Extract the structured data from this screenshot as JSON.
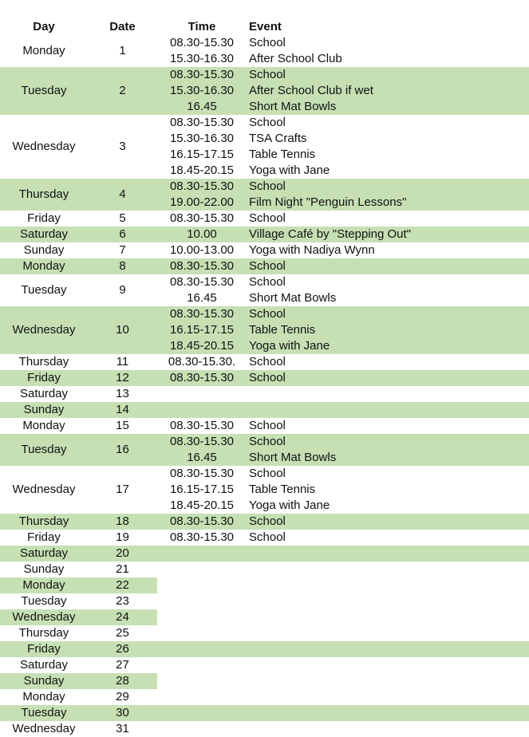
{
  "header": {
    "day": "Day",
    "date": "Date",
    "time": "Time",
    "event": "Event"
  },
  "colors": {
    "band": "#c6e0b4"
  },
  "days": [
    {
      "day": "Monday",
      "date": "1",
      "shade": "none",
      "events": [
        {
          "time": "08.30-15.30",
          "event": "School"
        },
        {
          "time": "15.30-16.30",
          "event": "After School Club"
        }
      ]
    },
    {
      "day": "Tuesday",
      "date": "2",
      "shade": "full",
      "events": [
        {
          "time": "08.30-15.30",
          "event": "School"
        },
        {
          "time": "15.30-16.30",
          "event": "After School Club if wet"
        },
        {
          "time": "16.45",
          "event": "Short Mat Bowls"
        }
      ]
    },
    {
      "day": "Wednesday",
      "date": "3",
      "shade": "none",
      "events": [
        {
          "time": "08.30-15.30",
          "event": "School"
        },
        {
          "time": "15.30-16.30",
          "event": "TSA Crafts"
        },
        {
          "time": "16.15-17.15",
          "event": "Table Tennis"
        },
        {
          "time": "18.45-20.15",
          "event": "Yoga with Jane"
        }
      ]
    },
    {
      "day": "Thursday",
      "date": "4",
      "shade": "full",
      "events": [
        {
          "time": "08.30-15.30",
          "event": "School"
        },
        {
          "time": "19.00-22.00",
          "event": "Film Night \"Penguin Lessons\""
        }
      ]
    },
    {
      "day": "Friday",
      "date": "5",
      "shade": "none",
      "events": [
        {
          "time": "08.30-15.30",
          "event": "School"
        }
      ]
    },
    {
      "day": "Saturday",
      "date": "6",
      "shade": "full",
      "events": [
        {
          "time": "10.00",
          "event": "Village Café by \"Stepping Out\""
        }
      ]
    },
    {
      "day": "Sunday",
      "date": "7",
      "shade": "none",
      "events": [
        {
          "time": "10.00-13.00",
          "event": "Yoga with Nadiya Wynn"
        }
      ]
    },
    {
      "day": "Monday",
      "date": "8",
      "shade": "full",
      "events": [
        {
          "time": "08.30-15.30",
          "event": "School"
        }
      ]
    },
    {
      "day": "Tuesday",
      "date": "9",
      "shade": "none",
      "events": [
        {
          "time": "08.30-15.30",
          "event": "School"
        },
        {
          "time": "16.45",
          "event": "Short Mat Bowls"
        }
      ]
    },
    {
      "day": "Wednesday",
      "date": "10",
      "shade": "full",
      "events": [
        {
          "time": "08.30-15.30",
          "event": "School"
        },
        {
          "time": "16.15-17.15",
          "event": "Table Tennis"
        },
        {
          "time": "18.45-20.15",
          "event": "Yoga with Jane"
        }
      ]
    },
    {
      "day": "Thursday",
      "date": "11",
      "shade": "none",
      "events": [
        {
          "time": "08.30-15.30.",
          "event": "School"
        }
      ]
    },
    {
      "day": "Friday",
      "date": "12",
      "shade": "full",
      "events": [
        {
          "time": "08.30-15.30",
          "event": "School"
        }
      ]
    },
    {
      "day": "Saturday",
      "date": "13",
      "shade": "none",
      "events": []
    },
    {
      "day": "Sunday",
      "date": "14",
      "shade": "full",
      "events": []
    },
    {
      "day": "Monday",
      "date": "15",
      "shade": "none",
      "events": [
        {
          "time": "08.30-15.30",
          "event": "School"
        }
      ]
    },
    {
      "day": "Tuesday",
      "date": "16",
      "shade": "full",
      "events": [
        {
          "time": "08.30-15.30",
          "event": "School"
        },
        {
          "time": "16.45",
          "event": "Short Mat Bowls"
        }
      ]
    },
    {
      "day": "Wednesday",
      "date": "17",
      "shade": "none",
      "events": [
        {
          "time": "08.30-15.30",
          "event": "School"
        },
        {
          "time": "16.15-17.15",
          "event": "Table Tennis"
        },
        {
          "time": "18.45-20.15",
          "event": "Yoga with Jane"
        }
      ]
    },
    {
      "day": "Thursday",
      "date": "18",
      "shade": "full",
      "events": [
        {
          "time": "08.30-15.30",
          "event": "School"
        }
      ]
    },
    {
      "day": "Friday",
      "date": "19",
      "shade": "none",
      "events": [
        {
          "time": "08.30-15.30",
          "event": "School"
        }
      ]
    },
    {
      "day": "Saturday",
      "date": "20",
      "shade": "full",
      "events": []
    },
    {
      "day": "Sunday",
      "date": "21",
      "shade": "none",
      "events": []
    },
    {
      "day": "Monday",
      "date": "22",
      "shade": "partial",
      "events": []
    },
    {
      "day": "Tuesday",
      "date": "23",
      "shade": "none",
      "events": []
    },
    {
      "day": "Wednesday",
      "date": "24",
      "shade": "partial",
      "events": []
    },
    {
      "day": "Thursday",
      "date": "25",
      "shade": "none",
      "events": []
    },
    {
      "day": "Friday",
      "date": "26",
      "shade": "full",
      "events": []
    },
    {
      "day": "Saturday",
      "date": "27",
      "shade": "none",
      "events": []
    },
    {
      "day": "Sunday",
      "date": "28",
      "shade": "partial",
      "events": []
    },
    {
      "day": "Monday",
      "date": "29",
      "shade": "none",
      "events": []
    },
    {
      "day": "Tuesday",
      "date": "30",
      "shade": "full",
      "events": []
    },
    {
      "day": "Wednesday",
      "date": "31",
      "shade": "none",
      "events": []
    }
  ]
}
